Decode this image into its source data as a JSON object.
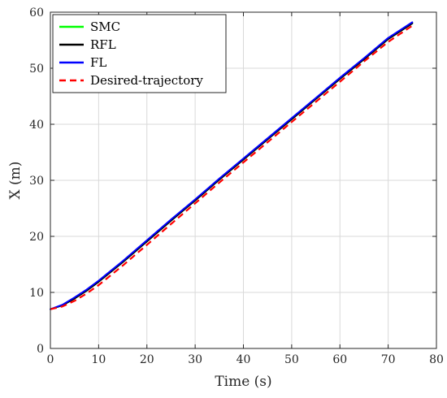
{
  "chart_data": {
    "type": "line",
    "title": "",
    "xlabel": "Time (s)",
    "ylabel": "X (m)",
    "xlim": [
      0,
      80
    ],
    "ylim": [
      0,
      60
    ],
    "xticks": [
      "0",
      "10",
      "20",
      "30",
      "40",
      "50",
      "60",
      "70",
      "80"
    ],
    "yticks": [
      "0",
      "10",
      "20",
      "30",
      "40",
      "50",
      "60"
    ],
    "grid": true,
    "legend_position": "top-left",
    "x": [
      0,
      2.5,
      5,
      7.5,
      10,
      15,
      20,
      25,
      30,
      35,
      40,
      45,
      50,
      55,
      60,
      65,
      70,
      75
    ],
    "series": [
      {
        "name": "SMC",
        "color": "#00ff00",
        "style": "solid",
        "values": [
          7.0,
          7.7,
          8.9,
          10.3,
          11.9,
          15.4,
          19.1,
          22.8,
          26.4,
          30.1,
          33.7,
          37.3,
          40.9,
          44.5,
          48.1,
          51.6,
          55.2,
          58.0
        ]
      },
      {
        "name": "RFL",
        "color": "#000000",
        "style": "solid",
        "values": [
          7.0,
          7.7,
          8.9,
          10.3,
          11.9,
          15.4,
          19.1,
          22.8,
          26.4,
          30.1,
          33.7,
          37.3,
          40.9,
          44.5,
          48.1,
          51.6,
          55.2,
          58.0
        ]
      },
      {
        "name": "FL",
        "color": "#0000ff",
        "style": "solid",
        "values": [
          7.0,
          7.8,
          9.1,
          10.5,
          12.1,
          15.6,
          19.3,
          23.0,
          26.6,
          30.3,
          33.9,
          37.5,
          41.1,
          44.7,
          48.3,
          51.8,
          55.4,
          58.2
        ]
      },
      {
        "name": "Desired-trajectory",
        "color": "#ff0000",
        "style": "dashed",
        "values": [
          7.0,
          7.5,
          8.5,
          9.8,
          11.3,
          14.8,
          18.5,
          22.2,
          25.9,
          29.6,
          33.2,
          36.8,
          40.4,
          44.0,
          47.6,
          51.2,
          54.7,
          57.6
        ]
      }
    ]
  }
}
